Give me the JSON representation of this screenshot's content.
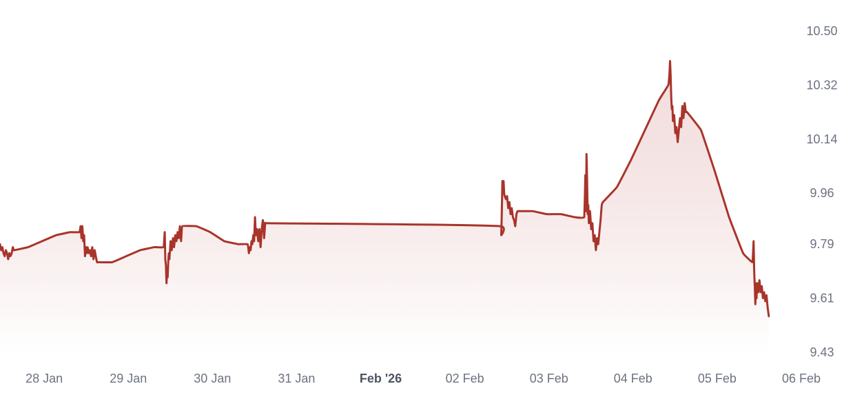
{
  "chart_data": {
    "type": "area",
    "title": "",
    "xlabel": "",
    "ylabel": "",
    "colors": {
      "line": "#a8342a",
      "fill_top": "#e8c2c2",
      "fill_bottom": "#ffffff",
      "tick_text": "#6b7280"
    },
    "grid": false,
    "y_axis_position": "right",
    "ylim": [
      9.43,
      10.5
    ],
    "y_ticks": [
      "10.50",
      "10.32",
      "10.14",
      "9.96",
      "9.79",
      "9.61",
      "9.43"
    ],
    "xlim": [
      "2026-01-27T11:00",
      "2026-02-06T00:00"
    ],
    "x_ticks": [
      {
        "x": "2026-01-28T00:00",
        "label": "28 Jan",
        "bold": false
      },
      {
        "x": "2026-01-29T00:00",
        "label": "29 Jan",
        "bold": false
      },
      {
        "x": "2026-01-30T00:00",
        "label": "30 Jan",
        "bold": false
      },
      {
        "x": "2026-01-31T00:00",
        "label": "31 Jan",
        "bold": false
      },
      {
        "x": "2026-02-01T00:00",
        "label": "Feb '26",
        "bold": true
      },
      {
        "x": "2026-02-02T00:00",
        "label": "02 Feb",
        "bold": false
      },
      {
        "x": "2026-02-03T00:00",
        "label": "03 Feb",
        "bold": false
      },
      {
        "x": "2026-02-04T00:00",
        "label": "04 Feb",
        "bold": false
      },
      {
        "x": "2026-02-05T00:00",
        "label": "05 Feb",
        "bold": false
      },
      {
        "x": "2026-02-06T00:00",
        "label": "06 Feb",
        "bold": false
      }
    ],
    "series": [
      {
        "points": [
          [
            "2026-01-27T11:00",
            9.79
          ],
          [
            "2026-01-27T11:20",
            9.77
          ],
          [
            "2026-01-27T11:40",
            9.78
          ],
          [
            "2026-01-27T12:00",
            9.76
          ],
          [
            "2026-01-27T12:20",
            9.75
          ],
          [
            "2026-01-27T12:40",
            9.77
          ],
          [
            "2026-01-27T13:00",
            9.76
          ],
          [
            "2026-01-27T13:20",
            9.74
          ],
          [
            "2026-01-27T13:40",
            9.76
          ],
          [
            "2026-01-27T14:00",
            9.75
          ],
          [
            "2026-01-27T14:20",
            9.76
          ],
          [
            "2026-01-27T14:40",
            9.78
          ],
          [
            "2026-01-27T15:00",
            9.77
          ],
          [
            "2026-01-27T19:00",
            9.78
          ],
          [
            "2026-01-27T23:00",
            9.8
          ],
          [
            "2026-01-28T03:00",
            9.82
          ],
          [
            "2026-01-28T07:00",
            9.83
          ],
          [
            "2026-01-28T09:40",
            9.83
          ],
          [
            "2026-01-28T10:00",
            9.85
          ],
          [
            "2026-01-28T10:15",
            9.81
          ],
          [
            "2026-01-28T10:30",
            9.85
          ],
          [
            "2026-01-28T10:45",
            9.8
          ],
          [
            "2026-01-28T11:00",
            9.82
          ],
          [
            "2026-01-28T11:15",
            9.75
          ],
          [
            "2026-01-28T11:30",
            9.78
          ],
          [
            "2026-01-28T11:45",
            9.76
          ],
          [
            "2026-01-28T12:00",
            9.78
          ],
          [
            "2026-01-28T12:20",
            9.76
          ],
          [
            "2026-01-28T12:40",
            9.77
          ],
          [
            "2026-01-28T13:00",
            9.75
          ],
          [
            "2026-01-28T13:20",
            9.78
          ],
          [
            "2026-01-28T13:40",
            9.74
          ],
          [
            "2026-01-28T14:00",
            9.77
          ],
          [
            "2026-01-28T14:20",
            9.75
          ],
          [
            "2026-01-28T14:40",
            9.73
          ],
          [
            "2026-01-28T15:00",
            9.73
          ],
          [
            "2026-01-28T19:00",
            9.73
          ],
          [
            "2026-01-28T23:00",
            9.75
          ],
          [
            "2026-01-29T03:00",
            9.77
          ],
          [
            "2026-01-29T07:00",
            9.78
          ],
          [
            "2026-01-29T09:40",
            9.78
          ],
          [
            "2026-01-29T10:00",
            9.83
          ],
          [
            "2026-01-29T10:10",
            9.74
          ],
          [
            "2026-01-29T10:20",
            9.72
          ],
          [
            "2026-01-29T10:30",
            9.66
          ],
          [
            "2026-01-29T10:40",
            9.7
          ],
          [
            "2026-01-29T10:50",
            9.68
          ],
          [
            "2026-01-29T11:00",
            9.73
          ],
          [
            "2026-01-29T11:10",
            9.76
          ],
          [
            "2026-01-29T11:20",
            9.74
          ],
          [
            "2026-01-29T11:40",
            9.8
          ],
          [
            "2026-01-29T12:00",
            9.77
          ],
          [
            "2026-01-29T12:20",
            9.81
          ],
          [
            "2026-01-29T12:40",
            9.78
          ],
          [
            "2026-01-29T13:00",
            9.82
          ],
          [
            "2026-01-29T13:20",
            9.8
          ],
          [
            "2026-01-29T13:40",
            9.83
          ],
          [
            "2026-01-29T14:00",
            9.81
          ],
          [
            "2026-01-29T14:20",
            9.85
          ],
          [
            "2026-01-29T14:40",
            9.8
          ],
          [
            "2026-01-29T15:00",
            9.85
          ],
          [
            "2026-01-29T19:00",
            9.85
          ],
          [
            "2026-01-29T23:00",
            9.83
          ],
          [
            "2026-01-30T03:00",
            9.8
          ],
          [
            "2026-01-30T07:00",
            9.79
          ],
          [
            "2026-01-30T09:40",
            9.79
          ],
          [
            "2026-01-30T10:00",
            9.76
          ],
          [
            "2026-01-30T10:15",
            9.78
          ],
          [
            "2026-01-30T10:30",
            9.77
          ],
          [
            "2026-01-30T10:45",
            9.8
          ],
          [
            "2026-01-30T11:00",
            9.79
          ],
          [
            "2026-01-30T11:15",
            9.82
          ],
          [
            "2026-01-30T11:30",
            9.8
          ],
          [
            "2026-01-30T11:45",
            9.88
          ],
          [
            "2026-01-30T12:00",
            9.82
          ],
          [
            "2026-01-30T12:20",
            9.84
          ],
          [
            "2026-01-30T12:40",
            9.8
          ],
          [
            "2026-01-30T13:00",
            9.84
          ],
          [
            "2026-01-30T13:20",
            9.78
          ],
          [
            "2026-01-30T13:40",
            9.84
          ],
          [
            "2026-01-30T14:00",
            9.87
          ],
          [
            "2026-01-30T14:20",
            9.81
          ],
          [
            "2026-01-30T14:40",
            9.86
          ],
          [
            "2026-01-30T15:00",
            9.86
          ],
          [
            "2026-02-02T09:40",
            9.85
          ],
          [
            "2026-02-02T10:00",
            9.82
          ],
          [
            "2026-02-02T10:10",
            9.9
          ],
          [
            "2026-02-02T10:20",
            10.0
          ],
          [
            "2026-02-02T10:30",
            9.99
          ],
          [
            "2026-02-02T10:40",
            10.0
          ],
          [
            "2026-02-02T10:50",
            9.96
          ],
          [
            "2026-02-02T11:00",
            9.95
          ],
          [
            "2026-02-02T11:20",
            9.94
          ],
          [
            "2026-02-02T11:40",
            9.95
          ],
          [
            "2026-02-02T12:00",
            9.91
          ],
          [
            "2026-02-02T12:20",
            9.93
          ],
          [
            "2026-02-02T12:40",
            9.89
          ],
          [
            "2026-02-02T13:00",
            9.91
          ],
          [
            "2026-02-02T13:20",
            9.88
          ],
          [
            "2026-02-02T13:40",
            9.87
          ],
          [
            "2026-02-02T14:00",
            9.85
          ],
          [
            "2026-02-02T14:20",
            9.89
          ],
          [
            "2026-02-02T14:40",
            9.9
          ],
          [
            "2026-02-02T15:00",
            9.9
          ],
          [
            "2026-02-02T19:00",
            9.9
          ],
          [
            "2026-02-02T23:00",
            9.89
          ],
          [
            "2026-02-03T03:00",
            9.89
          ],
          [
            "2026-02-03T07:00",
            9.88
          ],
          [
            "2026-02-03T09:40",
            9.88
          ],
          [
            "2026-02-03T10:00",
            10.02
          ],
          [
            "2026-02-03T10:10",
            9.9
          ],
          [
            "2026-02-03T10:20",
            10.09
          ],
          [
            "2026-02-03T10:30",
            10.0
          ],
          [
            "2026-02-03T10:40",
            9.89
          ],
          [
            "2026-02-03T10:50",
            9.92
          ],
          [
            "2026-02-03T11:00",
            9.86
          ],
          [
            "2026-02-03T11:20",
            9.9
          ],
          [
            "2026-02-03T11:40",
            9.84
          ],
          [
            "2026-02-03T12:00",
            9.86
          ],
          [
            "2026-02-03T12:20",
            9.8
          ],
          [
            "2026-02-03T12:40",
            9.82
          ],
          [
            "2026-02-03T13:00",
            9.77
          ],
          [
            "2026-02-03T13:20",
            9.81
          ],
          [
            "2026-02-03T13:40",
            9.79
          ],
          [
            "2026-02-03T14:00",
            9.83
          ],
          [
            "2026-02-03T14:20",
            9.87
          ],
          [
            "2026-02-03T14:40",
            9.92
          ],
          [
            "2026-02-03T15:00",
            9.93
          ],
          [
            "2026-02-03T19:00",
            9.98
          ],
          [
            "2026-02-03T23:00",
            10.07
          ],
          [
            "2026-02-04T03:00",
            10.17
          ],
          [
            "2026-02-04T07:00",
            10.27
          ],
          [
            "2026-02-04T09:40",
            10.32
          ],
          [
            "2026-02-04T10:00",
            10.36
          ],
          [
            "2026-02-04T10:10",
            10.4
          ],
          [
            "2026-02-04T10:20",
            10.35
          ],
          [
            "2026-02-04T10:30",
            10.28
          ],
          [
            "2026-02-04T10:40",
            10.24
          ],
          [
            "2026-02-04T10:50",
            10.25
          ],
          [
            "2026-02-04T11:00",
            10.2
          ],
          [
            "2026-02-04T11:20",
            10.22
          ],
          [
            "2026-02-04T11:40",
            10.16
          ],
          [
            "2026-02-04T12:00",
            10.18
          ],
          [
            "2026-02-04T12:20",
            10.13
          ],
          [
            "2026-02-04T12:40",
            10.17
          ],
          [
            "2026-02-04T13:00",
            10.21
          ],
          [
            "2026-02-04T13:20",
            10.18
          ],
          [
            "2026-02-04T13:40",
            10.25
          ],
          [
            "2026-02-04T14:00",
            10.21
          ],
          [
            "2026-02-04T14:20",
            10.26
          ],
          [
            "2026-02-04T14:40",
            10.23
          ],
          [
            "2026-02-04T15:00",
            10.23
          ],
          [
            "2026-02-04T19:00",
            10.17
          ],
          [
            "2026-02-04T23:00",
            10.03
          ],
          [
            "2026-02-05T03:00",
            9.88
          ],
          [
            "2026-02-05T07:00",
            9.76
          ],
          [
            "2026-02-05T09:40",
            9.73
          ],
          [
            "2026-02-05T10:00",
            9.8
          ],
          [
            "2026-02-05T10:10",
            9.7
          ],
          [
            "2026-02-05T10:20",
            9.65
          ],
          [
            "2026-02-05T10:30",
            9.59
          ],
          [
            "2026-02-05T10:40",
            9.66
          ],
          [
            "2026-02-05T10:50",
            9.61
          ],
          [
            "2026-02-05T11:00",
            9.66
          ],
          [
            "2026-02-05T11:20",
            9.63
          ],
          [
            "2026-02-05T11:40",
            9.67
          ],
          [
            "2026-02-05T12:00",
            9.63
          ],
          [
            "2026-02-05T12:20",
            9.65
          ],
          [
            "2026-02-05T12:40",
            9.61
          ],
          [
            "2026-02-05T13:00",
            9.63
          ],
          [
            "2026-02-05T13:20",
            9.6
          ],
          [
            "2026-02-05T13:40",
            9.62
          ],
          [
            "2026-02-05T14:00",
            9.58
          ],
          [
            "2026-02-05T14:20",
            9.55
          ]
        ]
      }
    ]
  }
}
